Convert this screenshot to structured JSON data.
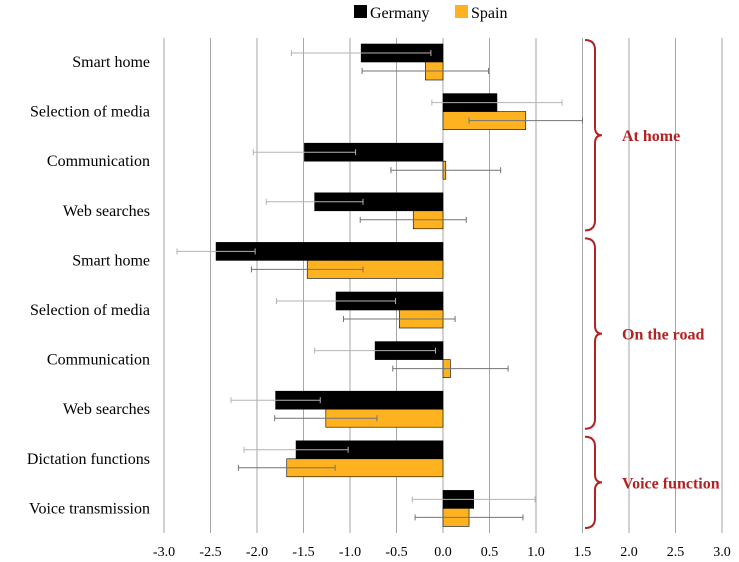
{
  "chart_data": {
    "type": "bar",
    "orientation": "horizontal",
    "categories": [
      "Smart home",
      "Selection of media",
      "Communication",
      "Web searches",
      "Smart home",
      "Selection of media",
      "Communication",
      "Web searches",
      "Dictation functions",
      "Voice transmission"
    ],
    "series": [
      {
        "name": "Germany",
        "color": "#000000",
        "values": [
          -0.88,
          0.58,
          -1.49,
          -1.38,
          -2.44,
          -1.15,
          -0.73,
          -1.8,
          -1.58,
          0.33
        ],
        "error": [
          0.75,
          0.7,
          0.55,
          0.52,
          0.42,
          0.64,
          0.65,
          0.48,
          0.56,
          0.66
        ]
      },
      {
        "name": "Spain",
        "color": "#ffb21f",
        "values": [
          -0.19,
          0.89,
          0.03,
          -0.32,
          -1.46,
          -0.47,
          0.08,
          -1.26,
          -1.68,
          0.28
        ],
        "error": [
          0.68,
          0.61,
          0.59,
          0.57,
          0.6,
          0.6,
          0.62,
          0.55,
          0.52,
          0.58
        ]
      }
    ],
    "groups": [
      {
        "label": "At home",
        "from": 0,
        "to": 3
      },
      {
        "label": "On the road",
        "from": 4,
        "to": 7
      },
      {
        "label": "Voice function",
        "from": 8,
        "to": 9
      }
    ],
    "xlim": [
      -3.0,
      3.0
    ],
    "xticks": [
      "-3.0",
      "-2.5",
      "-2.0",
      "-1.5",
      "-1.0",
      "-0.5",
      "0.0",
      "0.5",
      "1.0",
      "1.5",
      "2.0",
      "2.5",
      "3.0"
    ],
    "grid": true,
    "legend": "top-center",
    "group_color": "#b22222"
  }
}
